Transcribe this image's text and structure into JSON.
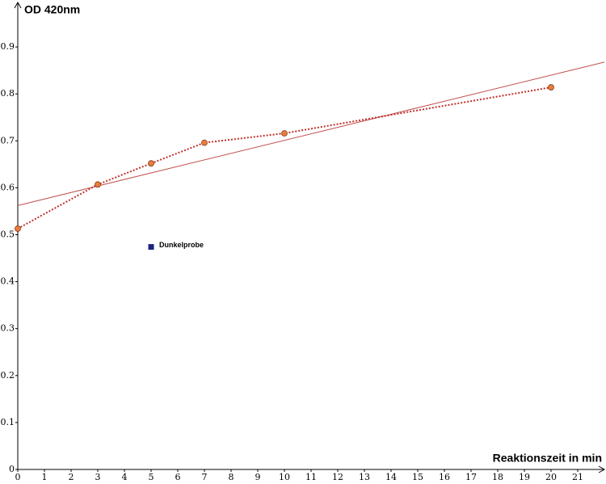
{
  "chart_data": {
    "type": "line",
    "y_label": "OD 420nm",
    "x_label": "Reaktionszeit in min",
    "xlim": [
      0,
      22
    ],
    "ylim": [
      0,
      1
    ],
    "xticks": [
      0,
      1,
      2,
      3,
      4,
      5,
      6,
      7,
      8,
      9,
      10,
      11,
      12,
      13,
      14,
      15,
      16,
      17,
      18,
      19,
      20,
      21
    ],
    "yticks": [
      0,
      0.1,
      0.2,
      0.3,
      0.4,
      0.5,
      0.6,
      0.7,
      0.8,
      0.9
    ],
    "trendline": true,
    "trendline_color": "#c0504d",
    "series": [
      {
        "x": [
          0,
          3,
          5,
          7,
          10,
          20
        ],
        "values": [
          0.513,
          0.607,
          0.652,
          0.696,
          0.716,
          0.814
        ],
        "color": "#e87d3e",
        "line_color": "#c0302a"
      }
    ],
    "points": [
      {
        "name": "Dunkelprobe",
        "x": 5,
        "value": 0.474,
        "color": "#1a237e"
      }
    ]
  }
}
